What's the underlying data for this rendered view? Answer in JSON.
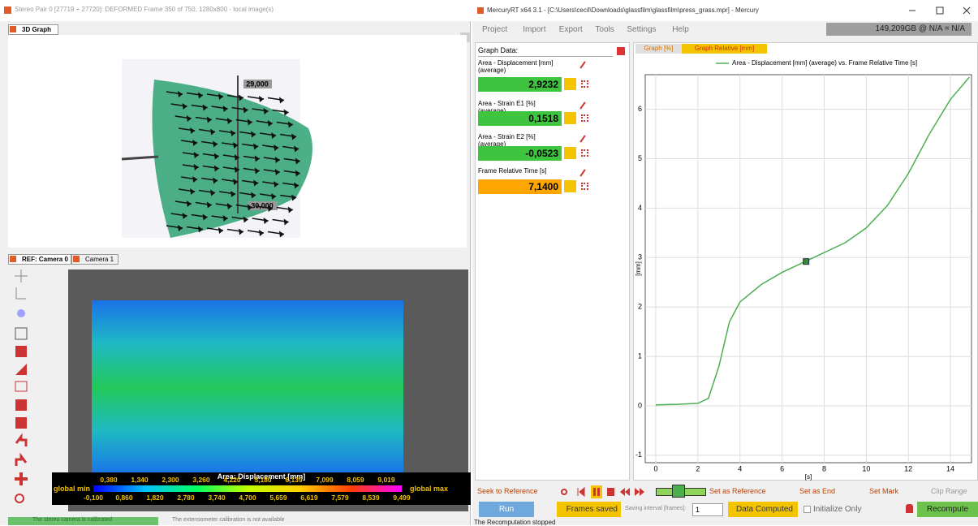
{
  "left_window": {
    "title": "Stereo Pair 0 [27719 + 27720]: DEFORMED Frame 350 of 750, 1280x800 - local image(s)",
    "graph_tab": "3D Graph",
    "graph_labels": [
      "29,000",
      "30,000"
    ],
    "camera_tabs": [
      "REF: Camera 0",
      "Camera 1"
    ],
    "colorbar": {
      "title": "Area: Displacement [mm]",
      "min_label": "global min",
      "max_label": "global max",
      "top_labels": [
        "0,380",
        "1,340",
        "2,300",
        "3,260",
        "4,220",
        "5,180",
        "6,139",
        "7,099",
        "8,059",
        "9,019"
      ],
      "bottom_labels": [
        "-0,100",
        "0,860",
        "1,820",
        "2,780",
        "3,740",
        "4,700",
        "5,659",
        "6,619",
        "7,579",
        "8,539",
        "9,499"
      ]
    },
    "status": [
      "The stereo camera is calibrated",
      "The extensometer calibration is not available"
    ]
  },
  "right_window": {
    "title": "MercuryRT x64 3.1 - [C:\\Users\\cecil\\Downloads\\glassfilm\\glassfilm\\press_grass.mpr] - Mercury",
    "menu": [
      "Project",
      "Import",
      "Export",
      "Tools",
      "Settings",
      "Help"
    ],
    "disk_status": "149,209GB @ N/A = N/A",
    "graph_data": {
      "header": "Graph Data:",
      "items": [
        {
          "label": "Area - Displacement [mm] (average)",
          "value": "2,9232"
        },
        {
          "label": "Area - Strain E1 [%] (average)",
          "value": "0,1518"
        },
        {
          "label": "Area - Strain E2 [%] (average)",
          "value": "-0,0523"
        },
        {
          "label": "Frame Relative Time [s]",
          "value": "7,1400"
        }
      ]
    },
    "graph_tabs": [
      "Graph [%]",
      "Graph Relative [mm]"
    ],
    "toolbar": {
      "seek": "Seek to Reference",
      "set_reference": "Set as Reference",
      "set_end": "Set as End",
      "set_mark": "Set Mark",
      "clip_range": "Clip Range"
    },
    "controls": {
      "run": "Run",
      "frames_saved": "Frames saved",
      "saving_interval": "Saving interval [frames]:",
      "interval_value": "1",
      "data_computed": "Data Computed",
      "initialize_only": "Initialize Only",
      "recompute": "Recompute"
    },
    "status": "The Recomputation stopped"
  },
  "chart_data": {
    "type": "line",
    "x_label": "[s]",
    "y_label": "[mm]",
    "x": [
      0,
      1,
      2,
      2.5,
      3,
      3.5,
      4,
      5,
      6,
      7,
      8,
      9,
      10,
      11,
      12,
      13,
      14,
      14.9
    ],
    "series": [
      {
        "name": "Area - Displacement [mm] (average) vs. Frame Relative Time [s]",
        "color": "#4caf50",
        "values": [
          0.02,
          0.03,
          0.05,
          0.15,
          0.8,
          1.7,
          2.1,
          2.45,
          2.7,
          2.9,
          3.1,
          3.3,
          3.6,
          4.05,
          4.7,
          5.5,
          6.2,
          6.65
        ]
      }
    ],
    "marker": {
      "x": 7.14,
      "y": 2.92,
      "color": "#3a8a3a"
    },
    "xlim": [
      -0.5,
      15
    ],
    "ylim": [
      -1.15,
      6.7
    ],
    "xticks": [
      0,
      2,
      4,
      6,
      8,
      10,
      12,
      14
    ],
    "yticks": [
      -1,
      0,
      1,
      2,
      3,
      4,
      5,
      6
    ],
    "grid": true
  }
}
